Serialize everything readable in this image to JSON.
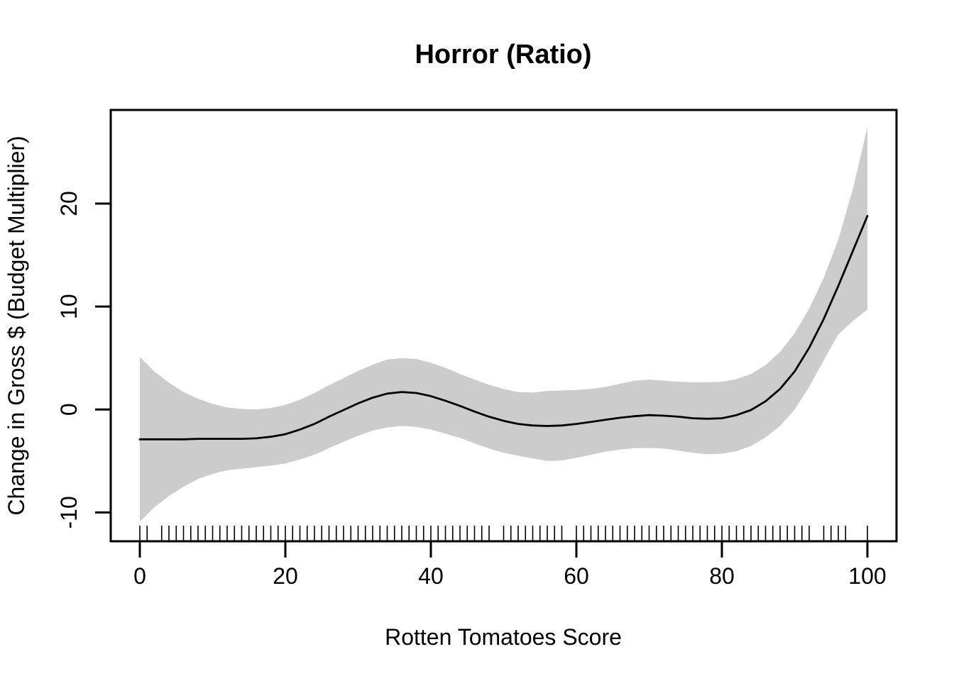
{
  "chart_data": {
    "type": "line",
    "title": "Horror (Ratio)",
    "xlabel": "Rotten Tomatoes Score",
    "ylabel": "Change in Gross $ (Budget Multiplier)",
    "xlim": [
      -4,
      104
    ],
    "ylim": [
      -12.8,
      29.1
    ],
    "x_ticks": [
      0,
      20,
      40,
      60,
      80,
      100
    ],
    "y_ticks": [
      -10,
      0,
      10,
      20
    ],
    "grid": "off",
    "legend": "none",
    "colors": {
      "line": "#000000",
      "band": "#cccccc",
      "axis": "#000000",
      "background": "#ffffff"
    },
    "x": [
      0,
      2,
      4,
      6,
      8,
      10,
      12,
      14,
      16,
      18,
      20,
      22,
      24,
      26,
      28,
      30,
      32,
      34,
      36,
      38,
      40,
      42,
      44,
      46,
      48,
      50,
      52,
      54,
      56,
      58,
      60,
      62,
      64,
      66,
      68,
      70,
      72,
      74,
      76,
      78,
      80,
      82,
      84,
      86,
      88,
      90,
      92,
      94,
      96,
      98,
      100
    ],
    "series": [
      {
        "name": "smooth fit",
        "values": [
          -2.9,
          -2.9,
          -2.9,
          -2.9,
          -2.85,
          -2.85,
          -2.85,
          -2.85,
          -2.8,
          -2.65,
          -2.4,
          -1.95,
          -1.4,
          -0.7,
          -0.05,
          0.6,
          1.15,
          1.55,
          1.7,
          1.6,
          1.3,
          0.85,
          0.35,
          -0.2,
          -0.7,
          -1.1,
          -1.4,
          -1.55,
          -1.6,
          -1.55,
          -1.4,
          -1.2,
          -1.0,
          -0.8,
          -0.65,
          -0.55,
          -0.6,
          -0.7,
          -0.85,
          -0.9,
          -0.85,
          -0.55,
          -0.05,
          0.8,
          2.0,
          3.7,
          6.0,
          8.8,
          12.0,
          15.4,
          18.8
        ]
      }
    ],
    "confidence_band": {
      "upper": [
        5.1,
        3.7,
        2.6,
        1.7,
        1.05,
        0.55,
        0.2,
        0.05,
        0.0,
        0.15,
        0.45,
        0.95,
        1.6,
        2.35,
        3.05,
        3.75,
        4.35,
        4.85,
        5.0,
        4.9,
        4.55,
        4.05,
        3.45,
        2.9,
        2.4,
        2.0,
        1.7,
        1.65,
        1.8,
        1.85,
        1.9,
        2.0,
        2.2,
        2.5,
        2.8,
        2.9,
        2.8,
        2.7,
        2.65,
        2.65,
        2.7,
        2.95,
        3.45,
        4.3,
        5.6,
        7.4,
        9.8,
        12.8,
        16.5,
        21.4,
        27.4
      ],
      "lower": [
        -10.9,
        -9.5,
        -8.4,
        -7.5,
        -6.75,
        -6.25,
        -5.9,
        -5.75,
        -5.6,
        -5.45,
        -5.25,
        -4.85,
        -4.4,
        -3.75,
        -3.15,
        -2.55,
        -2.05,
        -1.75,
        -1.6,
        -1.7,
        -1.95,
        -2.35,
        -2.75,
        -3.3,
        -3.8,
        -4.2,
        -4.5,
        -4.75,
        -5.0,
        -4.95,
        -4.7,
        -4.4,
        -4.1,
        -3.9,
        -3.75,
        -3.75,
        -3.8,
        -4.0,
        -4.2,
        -4.35,
        -4.3,
        -4.05,
        -3.55,
        -2.7,
        -1.6,
        0.0,
        2.2,
        4.8,
        7.3,
        8.6,
        9.7
      ]
    },
    "rug_x": [
      0,
      1,
      3,
      4,
      5,
      6,
      7,
      8,
      9,
      10,
      11,
      12,
      13,
      14,
      15,
      16,
      17,
      18,
      19,
      20,
      21,
      22,
      23,
      24,
      25,
      26,
      27,
      28,
      29,
      30,
      31,
      32,
      33,
      34,
      35,
      36,
      37,
      38,
      39,
      40,
      41,
      42,
      43,
      44,
      45,
      46,
      47,
      48,
      50,
      51,
      52,
      53,
      54,
      55,
      56,
      57,
      58,
      60,
      61,
      62,
      63,
      64,
      65,
      66,
      67,
      68,
      69,
      70,
      71,
      72,
      73,
      74,
      75,
      76,
      77,
      78,
      79,
      80,
      81,
      82,
      83,
      84,
      85,
      86,
      87,
      88,
      89,
      90,
      91,
      92,
      94,
      95,
      96,
      97,
      100
    ]
  }
}
